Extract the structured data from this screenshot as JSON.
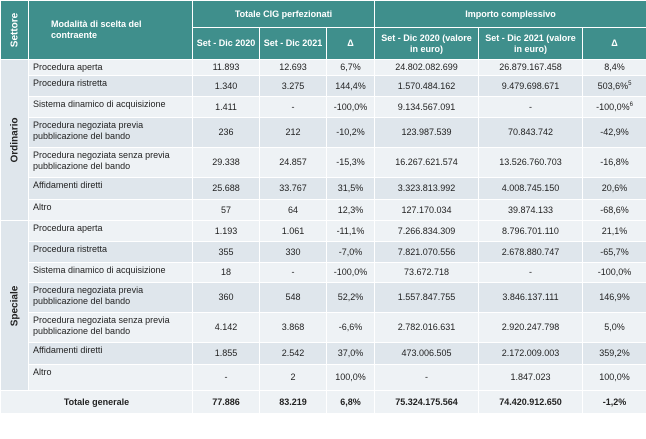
{
  "header": {
    "sector": "Settore",
    "modality": "Modalità di scelta del contraente",
    "group_cig": "Totale CIG perfezionati",
    "group_amount": "Importo complessivo",
    "col_cig_2020": "Set - Dic 2020",
    "col_cig_2021": "Set - Dic 2021",
    "col_delta": "Δ",
    "col_amt_2020": "Set - Dic 2020 (valore in euro)",
    "col_amt_2021": "Set - Dic 2021 (valore in euro)",
    "col_delta2": "Δ"
  },
  "sections": [
    {
      "name": "Ordinario",
      "rows": [
        {
          "label": "Procedura aperta",
          "cig2020": "11.893",
          "cig2021": "12.693",
          "delta": "6,7%",
          "amt2020": "24.802.082.699",
          "amt2021": "26.879.167.458",
          "delta2": "8,4%",
          "sup": ""
        },
        {
          "label": "Procedura ristretta",
          "cig2020": "1.340",
          "cig2021": "3.275",
          "delta": "144,4%",
          "amt2020": "1.570.484.162",
          "amt2021": "9.479.698.671",
          "delta2": "503,6%",
          "sup": "5"
        },
        {
          "label": "Sistema dinamico di acquisizione",
          "cig2020": "1.411",
          "cig2021": "-",
          "delta": "-100,0%",
          "amt2020": "9.134.567.091",
          "amt2021": "-",
          "delta2": "-100,0%",
          "sup": "6"
        },
        {
          "label": "Procedura negoziata previa pubblicazione del bando",
          "cig2020": "236",
          "cig2021": "212",
          "delta": "-10,2%",
          "amt2020": "123.987.539",
          "amt2021": "70.843.742",
          "delta2": "-42,9%",
          "sup": ""
        },
        {
          "label": "Procedura negoziata senza previa pubblicazione del bando",
          "cig2020": "29.338",
          "cig2021": "24.857",
          "delta": "-15,3%",
          "amt2020": "16.267.621.574",
          "amt2021": "13.526.760.703",
          "delta2": "-16,8%",
          "sup": ""
        },
        {
          "label": "Affidamenti diretti",
          "cig2020": "25.688",
          "cig2021": "33.767",
          "delta": "31,5%",
          "amt2020": "3.323.813.992",
          "amt2021": "4.008.745.150",
          "delta2": "20,6%",
          "sup": ""
        },
        {
          "label": "Altro",
          "cig2020": "57",
          "cig2021": "64",
          "delta": "12,3%",
          "amt2020": "127.170.034",
          "amt2021": "39.874.133",
          "delta2": "-68,6%",
          "sup": ""
        }
      ]
    },
    {
      "name": "Speciale",
      "rows": [
        {
          "label": "Procedura aperta",
          "cig2020": "1.193",
          "cig2021": "1.061",
          "delta": "-11,1%",
          "amt2020": "7.266.834.309",
          "amt2021": "8.796.701.110",
          "delta2": "21,1%",
          "sup": ""
        },
        {
          "label": "Procedura ristretta",
          "cig2020": "355",
          "cig2021": "330",
          "delta": "-7,0%",
          "amt2020": "7.821.070.556",
          "amt2021": "2.678.880.747",
          "delta2": "-65,7%",
          "sup": ""
        },
        {
          "label": "Sistema dinamico di acquisizione",
          "cig2020": "18",
          "cig2021": "-",
          "delta": "-100,0%",
          "amt2020": "73.672.718",
          "amt2021": "-",
          "delta2": "-100,0%",
          "sup": ""
        },
        {
          "label": "Procedura negoziata previa pubblicazione del bando",
          "cig2020": "360",
          "cig2021": "548",
          "delta": "52,2%",
          "amt2020": "1.557.847.755",
          "amt2021": "3.846.137.111",
          "delta2": "146,9%",
          "sup": ""
        },
        {
          "label": "Procedura negoziata senza previa pubblicazione del bando",
          "cig2020": "4.142",
          "cig2021": "3.868",
          "delta": "-6,6%",
          "amt2020": "2.782.016.631",
          "amt2021": "2.920.247.798",
          "delta2": "5,0%",
          "sup": ""
        },
        {
          "label": "Affidamenti diretti",
          "cig2020": "1.855",
          "cig2021": "2.542",
          "delta": "37,0%",
          "amt2020": "473.006.505",
          "amt2021": "2.172.009.003",
          "delta2": "359,2%",
          "sup": ""
        },
        {
          "label": "Altro",
          "cig2020": "-",
          "cig2021": "2",
          "delta": "100,0%",
          "amt2020": "-",
          "amt2021": "1.847.023",
          "delta2": "100,0%",
          "sup": ""
        }
      ]
    }
  ],
  "total": {
    "label": "Totale generale",
    "cig2020": "77.886",
    "cig2021": "83.219",
    "delta": "6,8%",
    "amt2020": "75.324.175.564",
    "amt2021": "74.420.912.650",
    "delta2": "-1,2%"
  }
}
